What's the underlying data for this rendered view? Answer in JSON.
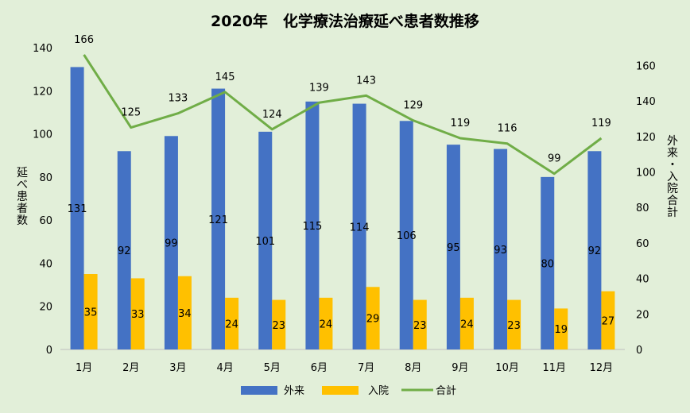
{
  "chart_data": {
    "type": "bar",
    "title": "2020年　化学療法治療延べ患者数推移",
    "categories": [
      "1月",
      "2月",
      "3月",
      "4月",
      "5月",
      "6月",
      "7月",
      "8月",
      "9月",
      "10月",
      "11月",
      "12月"
    ],
    "series": [
      {
        "name": "外来",
        "type": "bar",
        "axis": "left",
        "color": "#4472c4",
        "values": [
          131,
          92,
          99,
          121,
          101,
          115,
          114,
          106,
          95,
          93,
          80,
          92
        ]
      },
      {
        "name": "入院",
        "type": "bar",
        "axis": "left",
        "color": "#ffc000",
        "values": [
          35,
          33,
          34,
          24,
          23,
          24,
          29,
          23,
          24,
          23,
          19,
          27
        ]
      },
      {
        "name": "合計",
        "type": "line",
        "axis": "right",
        "color": "#70ad47",
        "values": [
          166,
          125,
          133,
          145,
          124,
          139,
          143,
          129,
          119,
          116,
          99,
          119
        ]
      }
    ],
    "ylabel": "延べ患者数",
    "y2label": "外来・入院合計",
    "ylim": [
      0,
      140
    ],
    "y2lim": [
      0,
      170
    ],
    "yticks": [
      0,
      20,
      40,
      60,
      80,
      100,
      120,
      140
    ],
    "y2ticks": [
      0,
      20,
      40,
      60,
      80,
      100,
      120,
      140,
      160
    ],
    "grid": false,
    "legend": "bottom",
    "background": "#e2efd9"
  }
}
